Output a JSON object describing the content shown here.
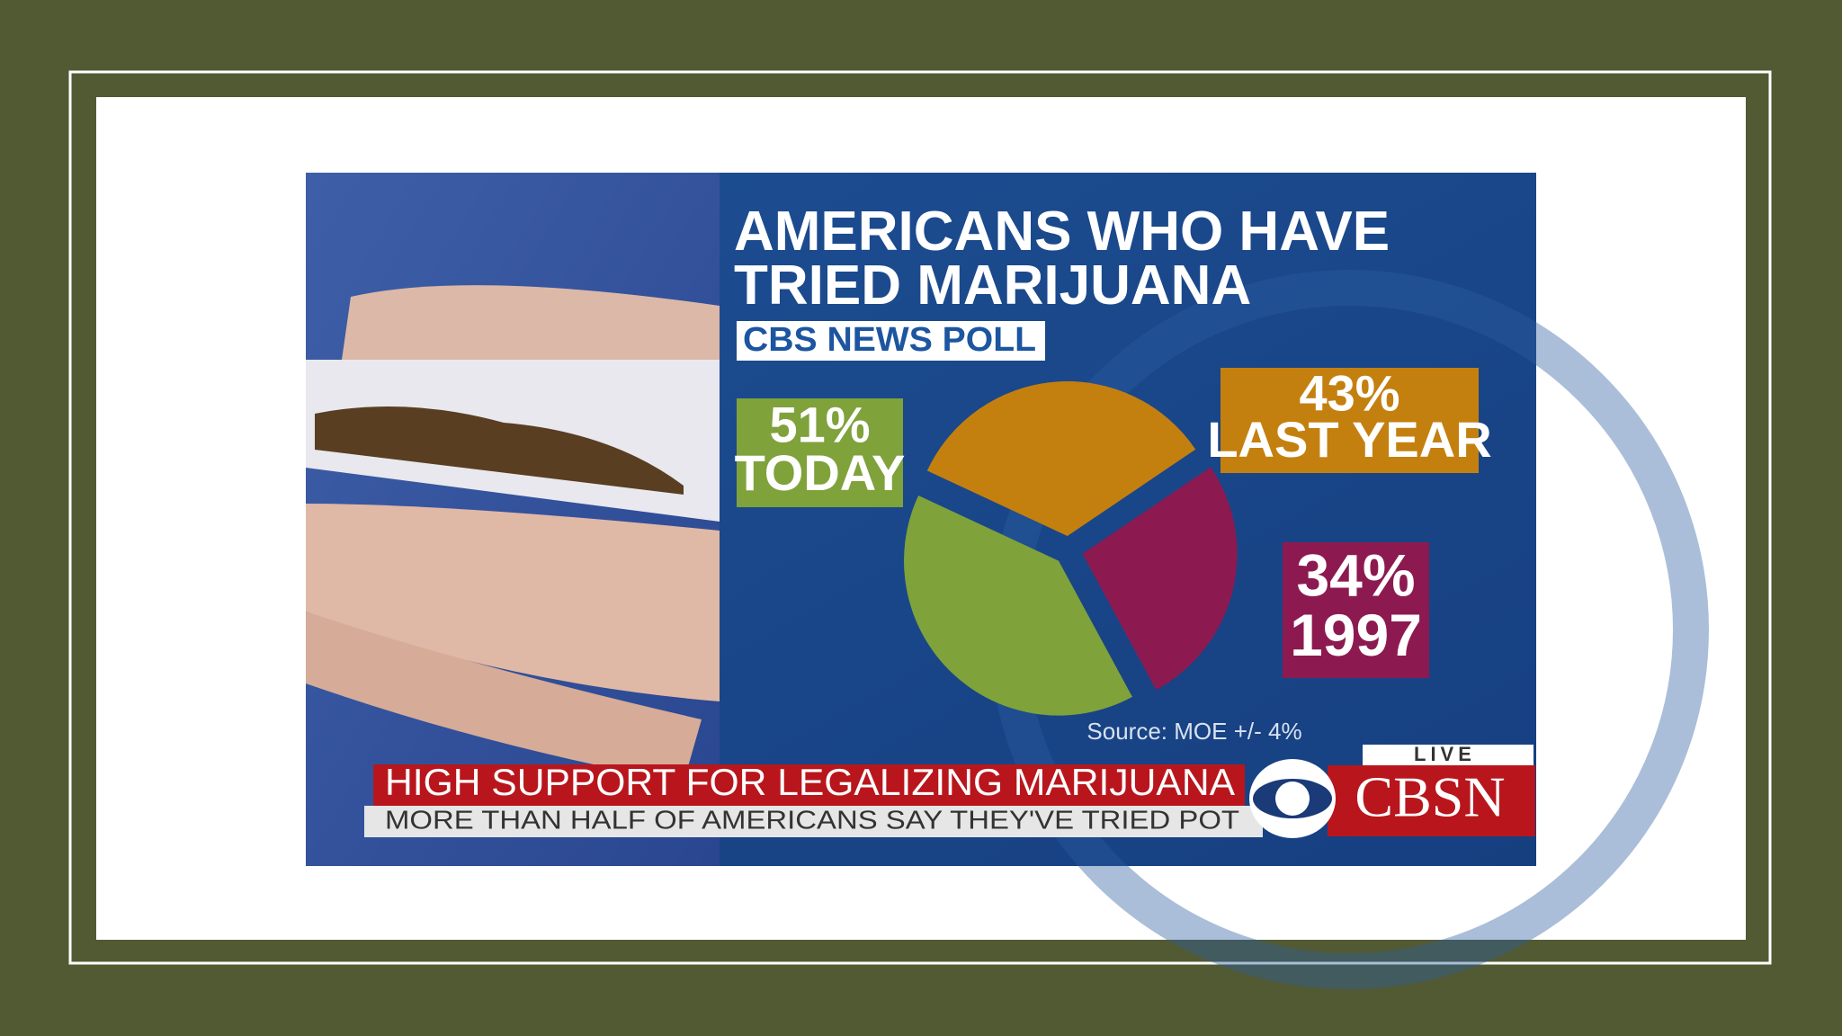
{
  "chart_data": {
    "type": "pie",
    "title": "AMERICANS WHO HAVE TRIED MARIJUANA",
    "subtitle": "CBS NEWS POLL",
    "categories": [
      "TODAY",
      "LAST YEAR",
      "1997"
    ],
    "values": [
      51,
      43,
      34
    ],
    "value_labels": [
      "51%",
      "43%",
      "34%"
    ],
    "colors": [
      "#7fa23b",
      "#c4800f",
      "#8c1a50"
    ],
    "source": "Source: MOE +/- 4%"
  },
  "ticker": {
    "headline": "HIGH SUPPORT FOR LEGALIZING MARIJUANA",
    "subline": "MORE THAN HALF OF AMERICANS SAY THEY'VE TRIED POT",
    "live": "LIVE",
    "network": "CBSN"
  }
}
